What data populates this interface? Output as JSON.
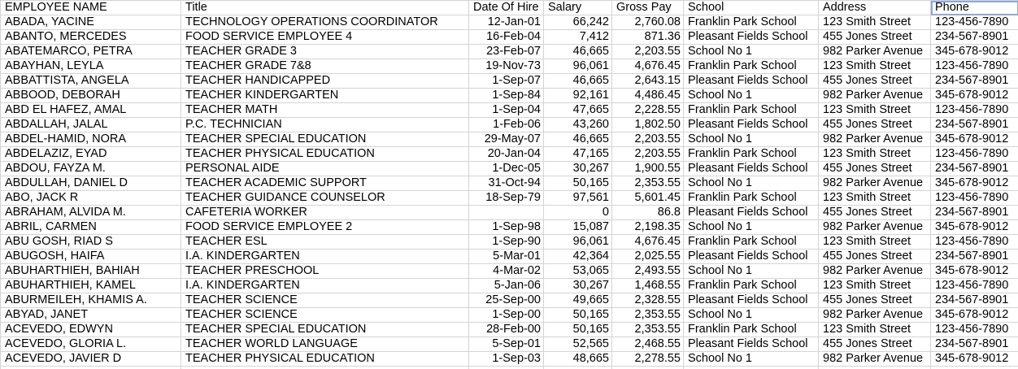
{
  "table": {
    "columns": [
      "EMPLOYEE NAME",
      "Title",
      "Date Of Hire",
      "Salary",
      "Gross Pay",
      "School",
      "Address",
      "Phone"
    ],
    "rows": [
      [
        "ABADA, YACINE",
        "TECHNOLOGY OPERATIONS COORDINATOR",
        "12-Jan-01",
        "66,242",
        "2,760.08",
        "Franklin Park School",
        "123 Smith Street",
        "123-456-7890"
      ],
      [
        "ABANTO, MERCEDES",
        "FOOD SERVICE EMPLOYEE 4",
        "16-Feb-04",
        "7,412",
        "871.36",
        "Pleasant Fields School",
        "455 Jones Street",
        "234-567-8901"
      ],
      [
        "ABATEMARCO, PETRA",
        "TEACHER GRADE 3",
        "23-Feb-07",
        "46,665",
        "2,203.55",
        "School No 1",
        "982 Parker Avenue",
        "345-678-9012"
      ],
      [
        "ABAYHAN, LEYLA",
        "TEACHER GRADE 7&8",
        "19-Nov-73",
        "96,061",
        "4,676.45",
        "Franklin Park School",
        "123 Smith Street",
        "123-456-7890"
      ],
      [
        "ABBATTISTA, ANGELA",
        "TEACHER HANDICAPPED",
        "1-Sep-07",
        "46,665",
        "2,643.15",
        "Pleasant Fields School",
        "455 Jones Street",
        "234-567-8901"
      ],
      [
        "ABBOOD, DEBORAH",
        "TEACHER KINDERGARTEN",
        "1-Sep-84",
        "92,161",
        "4,486.45",
        "School No 1",
        "982 Parker Avenue",
        "345-678-9012"
      ],
      [
        "ABD EL HAFEZ, AMAL",
        "TEACHER MATH",
        "1-Sep-04",
        "47,665",
        "2,228.55",
        "Franklin Park School",
        "123 Smith Street",
        "123-456-7890"
      ],
      [
        "ABDALLAH, JALAL",
        "P.C. TECHNICIAN",
        "1-Feb-06",
        "43,260",
        "1,802.50",
        "Pleasant Fields School",
        "455 Jones Street",
        "234-567-8901"
      ],
      [
        "ABDEL-HAMID, NORA",
        "TEACHER SPECIAL EDUCATION",
        "29-May-07",
        "46,665",
        "2,203.55",
        "School No 1",
        "982 Parker Avenue",
        "345-678-9012"
      ],
      [
        "ABDELAZIZ, EYAD",
        "TEACHER PHYSICAL EDUCATION",
        "20-Jan-04",
        "47,165",
        "2,203.55",
        "Franklin Park School",
        "123 Smith Street",
        "123-456-7890"
      ],
      [
        "ABDOU, FAYZA M.",
        "PERSONAL AIDE",
        "1-Dec-05",
        "30,267",
        "1,900.55",
        "Pleasant Fields School",
        "455 Jones Street",
        "234-567-8901"
      ],
      [
        "ABDULLAH, DANIEL D",
        "TEACHER ACADEMIC SUPPORT",
        "31-Oct-94",
        "50,165",
        "2,353.55",
        "School No 1",
        "982 Parker Avenue",
        "345-678-9012"
      ],
      [
        "ABO, JACK R",
        "TEACHER GUIDANCE COUNSELOR",
        "18-Sep-79",
        "97,561",
        "5,601.45",
        "Franklin Park School",
        "123 Smith Street",
        "123-456-7890"
      ],
      [
        "ABRAHAM, ALVIDA M.",
        "CAFETERIA WORKER",
        null,
        "0",
        "86.8",
        "Pleasant Fields School",
        "455 Jones Street",
        "234-567-8901"
      ],
      [
        "ABRIL, CARMEN",
        "FOOD SERVICE EMPLOYEE 2",
        "1-Sep-98",
        "15,087",
        "2,198.35",
        "School No 1",
        "982 Parker Avenue",
        "345-678-9012"
      ],
      [
        "ABU GOSH, RIAD S",
        "TEACHER ESL",
        "1-Sep-90",
        "96,061",
        "4,676.45",
        "Franklin Park School",
        "123 Smith Street",
        "123-456-7890"
      ],
      [
        "ABUGOSH, HAIFA",
        "I.A. KINDERGARTEN",
        "5-Mar-01",
        "42,364",
        "2,025.55",
        "Pleasant Fields School",
        "455 Jones Street",
        "234-567-8901"
      ],
      [
        "ABUHARTHIEH, BAHIAH",
        "TEACHER PRESCHOOL",
        "4-Mar-02",
        "53,065",
        "2,493.55",
        "School No 1",
        "982 Parker Avenue",
        "345-678-9012"
      ],
      [
        "ABUHARTHIEH, KAMEL",
        "I.A. KINDERGARTEN",
        "5-Jan-06",
        "30,267",
        "1,468.55",
        "Franklin Park School",
        "123 Smith Street",
        "123-456-7890"
      ],
      [
        "ABURMEILEH, KHAMIS A.",
        "TEACHER SCIENCE",
        "25-Sep-00",
        "49,665",
        "2,328.55",
        "Pleasant Fields School",
        "455 Jones Street",
        "234-567-8901"
      ],
      [
        "ABYAD, JANET",
        "TEACHER SCIENCE",
        "1-Sep-00",
        "50,165",
        "2,353.55",
        "School No 1",
        "982 Parker Avenue",
        "345-678-9012"
      ],
      [
        "ACEVEDO, EDWYN",
        "TEACHER SPECIAL EDUCATION",
        "28-Feb-00",
        "50,165",
        "2,353.55",
        "Franklin Park School",
        "123 Smith Street",
        "123-456-7890"
      ],
      [
        "ACEVEDO, GLORIA L.",
        "TEACHER WORLD LANGUAGE",
        "5-Sep-01",
        "52,565",
        "2,468.55",
        "Pleasant Fields School",
        "455 Jones Street",
        "234-567-8901"
      ],
      [
        "ACEVEDO, JAVIER D",
        "TEACHER PHYSICAL EDUCATION",
        "1-Sep-03",
        "48,665",
        "2,278.55",
        "School No 1",
        "982 Parker Avenue",
        "345-678-9012"
      ]
    ]
  }
}
